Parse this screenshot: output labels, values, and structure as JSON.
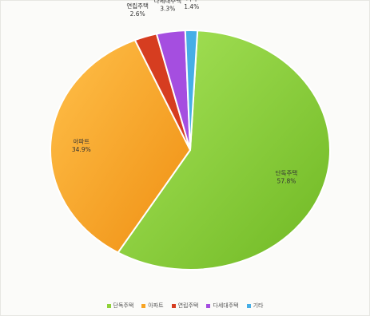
{
  "chart_data": {
    "type": "pie",
    "title": "",
    "slices": [
      {
        "label": "단독주택",
        "value": 57.8,
        "value_label": "57.8%",
        "color": "#8fd23a"
      },
      {
        "label": "아파트",
        "value": 34.9,
        "value_label": "34.9%",
        "color": "#f8a423"
      },
      {
        "label": "연립주택",
        "value": 2.6,
        "value_label": "2.6%",
        "color": "#d63d20"
      },
      {
        "label": "다세대주택",
        "value": 3.3,
        "value_label": "3.3%",
        "color": "#a54ee0"
      },
      {
        "label": "기타",
        "value": 1.4,
        "value_label": "1.4%",
        "color": "#46aee6"
      }
    ],
    "legend": {
      "position": "bottom"
    }
  }
}
